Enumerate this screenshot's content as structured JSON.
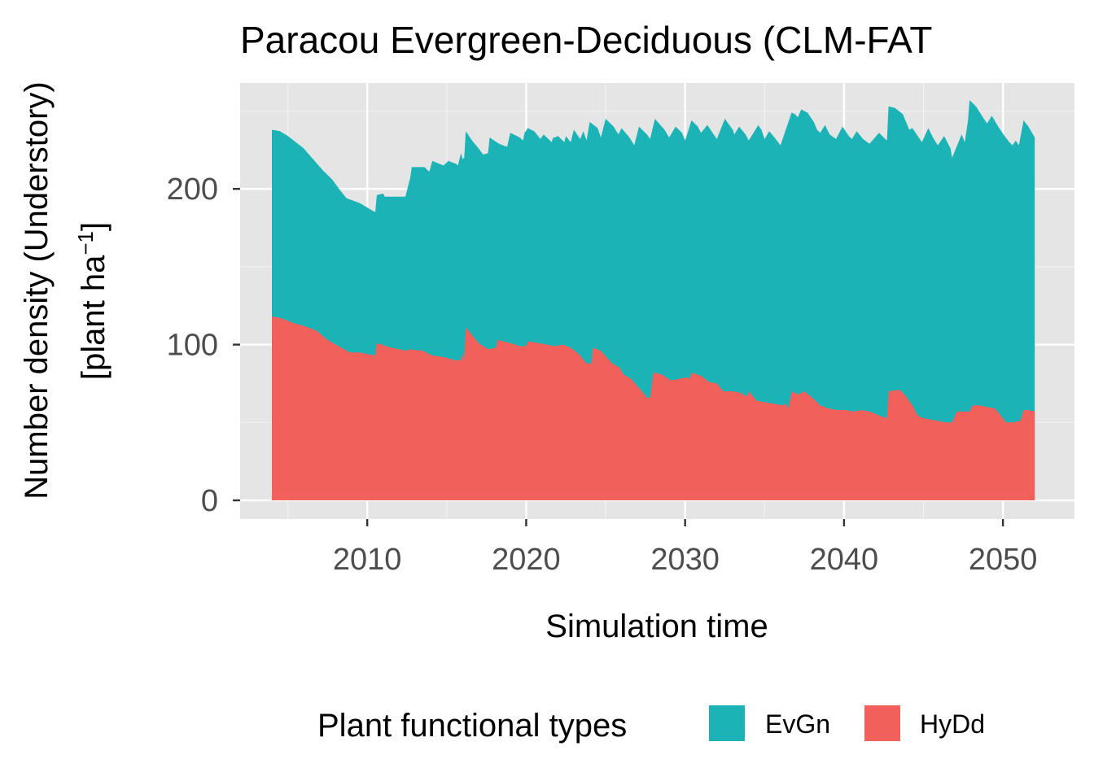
{
  "chart_data": {
    "type": "area",
    "stacked": true,
    "title": "Paracou Evergreen-Deciduous (CLM-FAT",
    "xlabel": "Simulation time",
    "ylabel_line1": "Number density (Understory)",
    "ylabel_line2_prefix": "[plant ha",
    "ylabel_line2_sup": "−1",
    "ylabel_line2_suffix": "]",
    "xlim": [
      2002.0,
      2054.5
    ],
    "ylim": [
      -12,
      268
    ],
    "x_ticks": [
      2010,
      2020,
      2030,
      2040,
      2050
    ],
    "x_tick_labels": [
      "2010",
      "2020",
      "2030",
      "2040",
      "2050"
    ],
    "x_minor_ticks": [
      2005,
      2015,
      2025,
      2035,
      2045
    ],
    "y_ticks": [
      0,
      100,
      200
    ],
    "y_tick_labels": [
      "0",
      "100",
      "200"
    ],
    "y_minor_ticks": [
      50,
      150,
      250
    ],
    "grid": true,
    "legend": {
      "title": "Plant functional types",
      "position": "bottom"
    },
    "series": [
      {
        "name": "HyDd",
        "color": "#F2605B",
        "points": [
          [
            2004.0,
            118
          ],
          [
            2004.6,
            117
          ],
          [
            2005.3,
            114
          ],
          [
            2006.0,
            112
          ],
          [
            2006.8,
            109
          ],
          [
            2007.5,
            103
          ],
          [
            2008.2,
            99
          ],
          [
            2008.9,
            95
          ],
          [
            2009.5,
            95
          ],
          [
            2010.5,
            93
          ],
          [
            2010.6,
            101
          ],
          [
            2011.5,
            98
          ],
          [
            2012.5,
            96
          ],
          [
            2012.6,
            97
          ],
          [
            2013.5,
            96
          ],
          [
            2014.1,
            93
          ],
          [
            2014.8,
            92
          ],
          [
            2015.5,
            90
          ],
          [
            2015.9,
            90
          ],
          [
            2016.0,
            95
          ],
          [
            2016.1,
            90
          ],
          [
            2016.2,
            111
          ],
          [
            2017.0,
            101
          ],
          [
            2017.6,
            97
          ],
          [
            2018.1,
            98
          ],
          [
            2018.2,
            103
          ],
          [
            2019.0,
            101
          ],
          [
            2019.6,
            99
          ],
          [
            2020.0,
            99
          ],
          [
            2020.1,
            102
          ],
          [
            2020.8,
            101
          ],
          [
            2021.3,
            100
          ],
          [
            2021.8,
            99
          ],
          [
            2022.3,
            100
          ],
          [
            2022.8,
            98
          ],
          [
            2023.3,
            94
          ],
          [
            2023.8,
            88
          ],
          [
            2024.1,
            88
          ],
          [
            2024.2,
            98
          ],
          [
            2024.7,
            96
          ],
          [
            2025.4,
            88
          ],
          [
            2025.9,
            85
          ],
          [
            2026.1,
            81
          ],
          [
            2026.6,
            78
          ],
          [
            2027.2,
            71
          ],
          [
            2027.6,
            66
          ],
          [
            2027.8,
            66
          ],
          [
            2028.0,
            82
          ],
          [
            2028.5,
            81
          ],
          [
            2029.1,
            77
          ],
          [
            2029.6,
            78
          ],
          [
            2030.1,
            79
          ],
          [
            2030.3,
            78
          ],
          [
            2030.4,
            82
          ],
          [
            2031.0,
            80
          ],
          [
            2031.5,
            76
          ],
          [
            2032.0,
            75
          ],
          [
            2032.4,
            70
          ],
          [
            2033.0,
            70
          ],
          [
            2033.5,
            69
          ],
          [
            2033.8,
            67
          ],
          [
            2033.9,
            67
          ],
          [
            2034.0,
            70
          ],
          [
            2034.5,
            64
          ],
          [
            2035.0,
            63
          ],
          [
            2035.6,
            62
          ],
          [
            2036.1,
            61
          ],
          [
            2036.3,
            62
          ],
          [
            2036.5,
            59
          ],
          [
            2036.7,
            70
          ],
          [
            2037.1,
            68
          ],
          [
            2037.5,
            70
          ],
          [
            2038.0,
            66
          ],
          [
            2038.5,
            61
          ],
          [
            2039.0,
            59
          ],
          [
            2039.6,
            58
          ],
          [
            2040.1,
            58
          ],
          [
            2040.6,
            57
          ],
          [
            2041.1,
            58
          ],
          [
            2041.6,
            57
          ],
          [
            2042.1,
            55
          ],
          [
            2042.6,
            53
          ],
          [
            2042.7,
            53
          ],
          [
            2042.8,
            70
          ],
          [
            2043.5,
            71
          ],
          [
            2043.8,
            68
          ],
          [
            2044.3,
            61
          ],
          [
            2044.6,
            55
          ],
          [
            2044.9,
            53
          ],
          [
            2045.4,
            52
          ],
          [
            2045.9,
            51
          ],
          [
            2046.4,
            50
          ],
          [
            2046.8,
            50
          ],
          [
            2047.1,
            57
          ],
          [
            2047.5,
            57
          ],
          [
            2047.9,
            57
          ],
          [
            2048.1,
            61
          ],
          [
            2048.5,
            61
          ],
          [
            2049.0,
            60
          ],
          [
            2049.5,
            59
          ],
          [
            2049.9,
            54
          ],
          [
            2050.2,
            50
          ],
          [
            2050.6,
            50
          ],
          [
            2051.1,
            51
          ],
          [
            2051.3,
            58
          ],
          [
            2051.6,
            58
          ],
          [
            2052.0,
            57
          ]
        ]
      },
      {
        "name": "EvGn",
        "color": "#1CB3B7",
        "total_points": [
          [
            2004.0,
            238
          ],
          [
            2004.5,
            237
          ],
          [
            2005.0,
            234
          ],
          [
            2005.5,
            230
          ],
          [
            2006.0,
            226
          ],
          [
            2006.6,
            219
          ],
          [
            2007.2,
            212
          ],
          [
            2007.8,
            206
          ],
          [
            2008.3,
            199
          ],
          [
            2008.7,
            194
          ],
          [
            2009.5,
            191
          ],
          [
            2010.0,
            188
          ],
          [
            2010.5,
            185
          ],
          [
            2010.6,
            196
          ],
          [
            2011.0,
            197
          ],
          [
            2011.1,
            195
          ],
          [
            2012.4,
            195
          ],
          [
            2012.7,
            207
          ],
          [
            2012.8,
            214
          ],
          [
            2013.6,
            214
          ],
          [
            2013.9,
            211
          ],
          [
            2014.1,
            218
          ],
          [
            2014.8,
            215
          ],
          [
            2015.1,
            218
          ],
          [
            2015.6,
            216
          ],
          [
            2015.7,
            215
          ],
          [
            2015.9,
            223
          ],
          [
            2016.0,
            219
          ],
          [
            2016.1,
            220
          ],
          [
            2016.2,
            237
          ],
          [
            2016.6,
            231
          ],
          [
            2017.0,
            226
          ],
          [
            2017.3,
            222
          ],
          [
            2017.6,
            223
          ],
          [
            2017.7,
            233
          ],
          [
            2018.3,
            229
          ],
          [
            2018.8,
            227
          ],
          [
            2019.0,
            236
          ],
          [
            2019.6,
            233
          ],
          [
            2019.8,
            231
          ],
          [
            2019.9,
            236
          ],
          [
            2020.1,
            239
          ],
          [
            2020.5,
            237
          ],
          [
            2020.9,
            232
          ],
          [
            2021.1,
            235
          ],
          [
            2021.6,
            230
          ],
          [
            2021.7,
            233
          ],
          [
            2021.8,
            233
          ],
          [
            2022.0,
            234
          ],
          [
            2022.4,
            230
          ],
          [
            2022.5,
            234
          ],
          [
            2022.8,
            230
          ],
          [
            2023.0,
            238
          ],
          [
            2023.4,
            232
          ],
          [
            2023.6,
            237
          ],
          [
            2023.8,
            231
          ],
          [
            2024.0,
            243
          ],
          [
            2024.5,
            239
          ],
          [
            2024.7,
            233
          ],
          [
            2025.0,
            245
          ],
          [
            2025.5,
            240
          ],
          [
            2025.8,
            235
          ],
          [
            2026.0,
            239
          ],
          [
            2026.5,
            233
          ],
          [
            2026.8,
            228
          ],
          [
            2027.1,
            240
          ],
          [
            2027.6,
            235
          ],
          [
            2027.8,
            232
          ],
          [
            2028.1,
            245
          ],
          [
            2028.7,
            238
          ],
          [
            2029.0,
            233
          ],
          [
            2029.4,
            240
          ],
          [
            2029.8,
            236
          ],
          [
            2030.0,
            231
          ],
          [
            2030.4,
            244
          ],
          [
            2030.8,
            240
          ],
          [
            2031.0,
            236
          ],
          [
            2031.4,
            241
          ],
          [
            2031.8,
            235
          ],
          [
            2032.0,
            232
          ],
          [
            2032.5,
            245
          ],
          [
            2033.0,
            238
          ],
          [
            2033.1,
            235
          ],
          [
            2033.4,
            240
          ],
          [
            2033.8,
            235
          ],
          [
            2034.0,
            231
          ],
          [
            2034.6,
            241
          ],
          [
            2034.8,
            238
          ],
          [
            2035.0,
            232
          ],
          [
            2035.3,
            237
          ],
          [
            2035.7,
            232
          ],
          [
            2036.0,
            228
          ],
          [
            2036.7,
            249
          ],
          [
            2036.9,
            248
          ],
          [
            2037.1,
            246
          ],
          [
            2037.3,
            251
          ],
          [
            2037.7,
            249
          ],
          [
            2038.1,
            243
          ],
          [
            2038.3,
            238
          ],
          [
            2038.5,
            236
          ],
          [
            2038.8,
            241
          ],
          [
            2039.1,
            235
          ],
          [
            2039.5,
            232
          ],
          [
            2039.9,
            240
          ],
          [
            2040.3,
            234
          ],
          [
            2040.5,
            232
          ],
          [
            2040.8,
            237
          ],
          [
            2041.2,
            232
          ],
          [
            2041.6,
            229
          ],
          [
            2042.2,
            236
          ],
          [
            2042.5,
            233
          ],
          [
            2042.7,
            231
          ],
          [
            2042.8,
            253
          ],
          [
            2043.2,
            252
          ],
          [
            2043.7,
            248
          ],
          [
            2044.1,
            238
          ],
          [
            2044.3,
            239
          ],
          [
            2044.7,
            233
          ],
          [
            2044.9,
            230
          ],
          [
            2045.3,
            239
          ],
          [
            2045.6,
            233
          ],
          [
            2045.9,
            228
          ],
          [
            2046.3,
            234
          ],
          [
            2046.7,
            226
          ],
          [
            2046.8,
            220
          ],
          [
            2047.4,
            235
          ],
          [
            2047.6,
            230
          ],
          [
            2047.8,
            244
          ],
          [
            2047.9,
            257
          ],
          [
            2048.3,
            253
          ],
          [
            2048.8,
            245
          ],
          [
            2049.0,
            242
          ],
          [
            2049.3,
            247
          ],
          [
            2049.7,
            240
          ],
          [
            2050.1,
            234
          ],
          [
            2050.4,
            230
          ],
          [
            2050.6,
            228
          ],
          [
            2050.8,
            231
          ],
          [
            2051.0,
            228
          ],
          [
            2051.3,
            244
          ],
          [
            2051.6,
            240
          ],
          [
            2052.0,
            233
          ]
        ]
      }
    ]
  }
}
